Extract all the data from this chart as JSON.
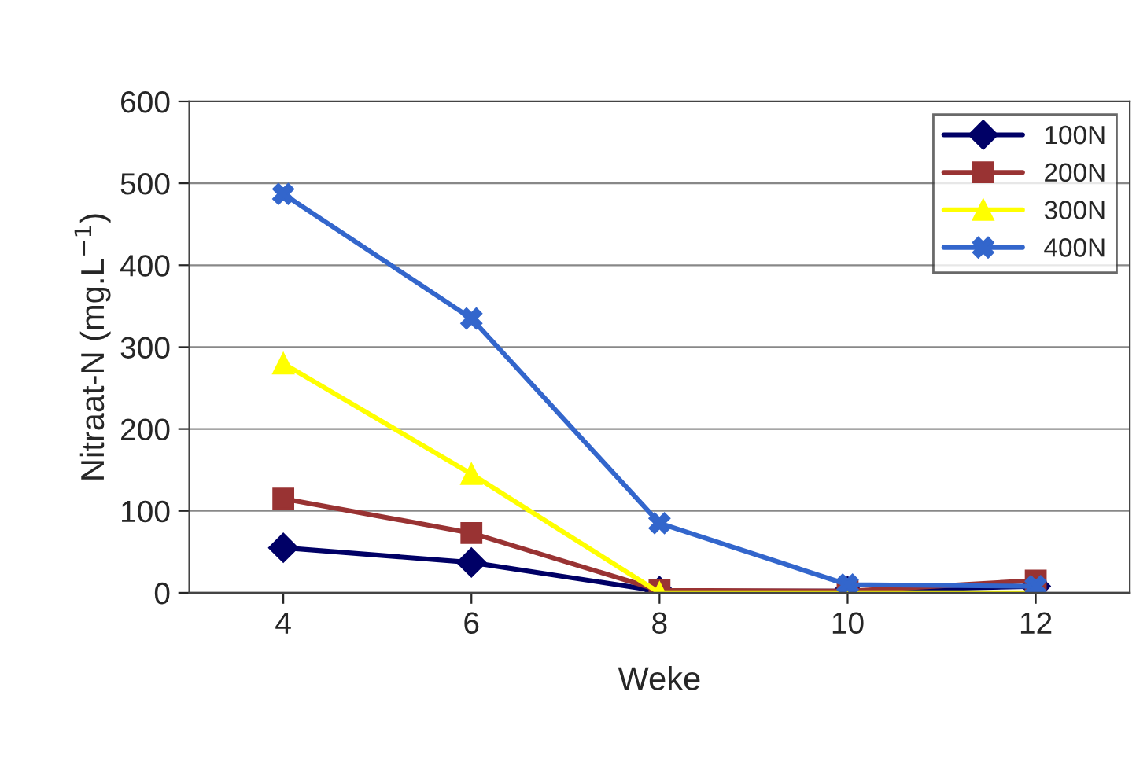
{
  "chart_data": {
    "type": "line",
    "xlabel": "Weke",
    "ylabel": "Nitraat-N (mg.L$^{−1}$)",
    "categories": [
      "4",
      "6",
      "8",
      "10",
      "12"
    ],
    "series": [
      {
        "name": "100N",
        "color": "#000066",
        "marker": "diamond",
        "values": [
          55,
          37,
          2,
          2,
          8
        ]
      },
      {
        "name": "200N",
        "color": "#993333",
        "marker": "square",
        "values": [
          115,
          73,
          3,
          2,
          15
        ]
      },
      {
        "name": "300N",
        "color": "#ffff00",
        "marker": "triangle",
        "values": [
          280,
          145,
          0,
          0,
          0
        ]
      },
      {
        "name": "400N",
        "color": "#3366cc",
        "marker": "cross",
        "values": [
          487,
          335,
          85,
          10,
          8
        ]
      }
    ],
    "ylim": [
      0,
      600
    ],
    "yticks": [
      0,
      100,
      200,
      300,
      400,
      500,
      600
    ],
    "grid": "y",
    "legend": "top right",
    "line_style": "solid"
  }
}
